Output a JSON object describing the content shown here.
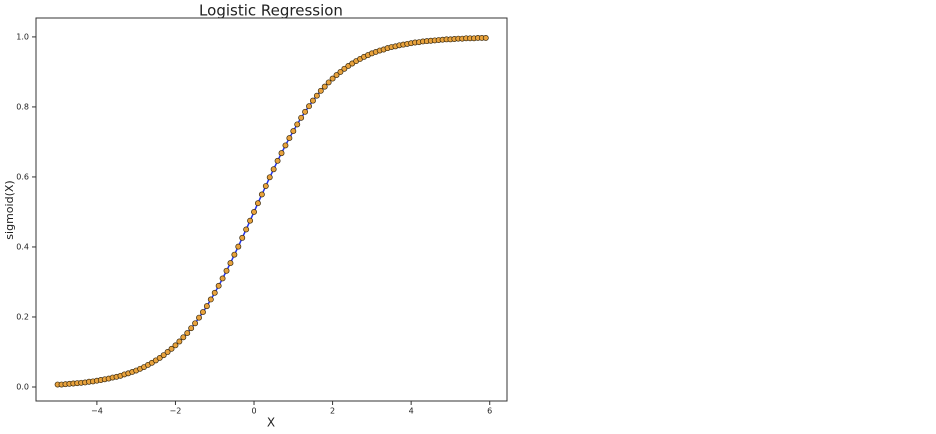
{
  "chart_data": {
    "type": "scatter",
    "title": "Logistic Regression",
    "x_label": "X",
    "y_label": "sigmoid(X)",
    "x": [
      -5.0,
      -4.9,
      -4.8,
      -4.7,
      -4.6,
      -4.5,
      -4.4,
      -4.3,
      -4.2,
      -4.1,
      -4.0,
      -3.9,
      -3.8,
      -3.7,
      -3.6,
      -3.5,
      -3.4,
      -3.3,
      -3.2,
      -3.1,
      -3.0,
      -2.9,
      -2.8,
      -2.7,
      -2.6,
      -2.5,
      -2.4,
      -2.3,
      -2.2,
      -2.1,
      -2.0,
      -1.9,
      -1.8,
      -1.7,
      -1.6,
      -1.5,
      -1.4,
      -1.3,
      -1.2,
      -1.1,
      -1.0,
      -0.9,
      -0.8,
      -0.7,
      -0.6,
      -0.5,
      -0.4,
      -0.3,
      -0.2,
      -0.1,
      0.0,
      0.1,
      0.2,
      0.3,
      0.4,
      0.5,
      0.6,
      0.7,
      0.8,
      0.9,
      1.0,
      1.1,
      1.2,
      1.3,
      1.4,
      1.5,
      1.6,
      1.7,
      1.8,
      1.9,
      2.0,
      2.1,
      2.2,
      2.3,
      2.4,
      2.5,
      2.6,
      2.7,
      2.8,
      2.9,
      3.0,
      3.1,
      3.2,
      3.3,
      3.4,
      3.5,
      3.6,
      3.7,
      3.8,
      3.9,
      4.0,
      4.1,
      4.2,
      4.3,
      4.4,
      4.5,
      4.6,
      4.7,
      4.8,
      4.9,
      5.0,
      5.1,
      5.2,
      5.3,
      5.4,
      5.5,
      5.6,
      5.7,
      5.8,
      5.9
    ],
    "series": [
      {
        "color": "#e8a23c",
        "edge_color": "#3a2a10",
        "line_color": "#2233ee",
        "values": [
          0.007,
          0.007,
          0.008,
          0.009,
          0.01,
          0.011,
          0.012,
          0.013,
          0.015,
          0.016,
          0.018,
          0.02,
          0.022,
          0.024,
          0.027,
          0.029,
          0.032,
          0.036,
          0.039,
          0.043,
          0.047,
          0.052,
          0.057,
          0.063,
          0.069,
          0.076,
          0.083,
          0.091,
          0.1,
          0.109,
          0.119,
          0.13,
          0.142,
          0.154,
          0.168,
          0.182,
          0.198,
          0.214,
          0.231,
          0.25,
          0.269,
          0.289,
          0.31,
          0.332,
          0.354,
          0.378,
          0.401,
          0.426,
          0.45,
          0.475,
          0.5,
          0.525,
          0.55,
          0.574,
          0.599,
          0.622,
          0.646,
          0.668,
          0.69,
          0.711,
          0.731,
          0.75,
          0.769,
          0.786,
          0.802,
          0.818,
          0.832,
          0.846,
          0.858,
          0.87,
          0.881,
          0.891,
          0.9,
          0.909,
          0.917,
          0.924,
          0.931,
          0.937,
          0.943,
          0.948,
          0.953,
          0.957,
          0.961,
          0.964,
          0.968,
          0.971,
          0.973,
          0.976,
          0.978,
          0.98,
          0.982,
          0.984,
          0.985,
          0.987,
          0.988,
          0.989,
          0.99,
          0.991,
          0.992,
          0.993,
          0.993,
          0.994,
          0.995,
          0.995,
          0.996,
          0.996,
          0.996,
          0.997,
          0.997,
          0.997
        ]
      }
    ],
    "xlim": [
      -5.55,
      6.44
    ],
    "ylim": [
      -0.04,
      1.054
    ],
    "xticks": [
      {
        "value": -4,
        "label": "−4"
      },
      {
        "value": -2,
        "label": "−2"
      },
      0,
      2,
      4,
      6
    ],
    "yticks": [
      {
        "value": 0,
        "label": "0.0"
      },
      0.2,
      0.4,
      0.6,
      0.8,
      {
        "value": 1,
        "label": "1.0"
      }
    ],
    "grid": false
  }
}
